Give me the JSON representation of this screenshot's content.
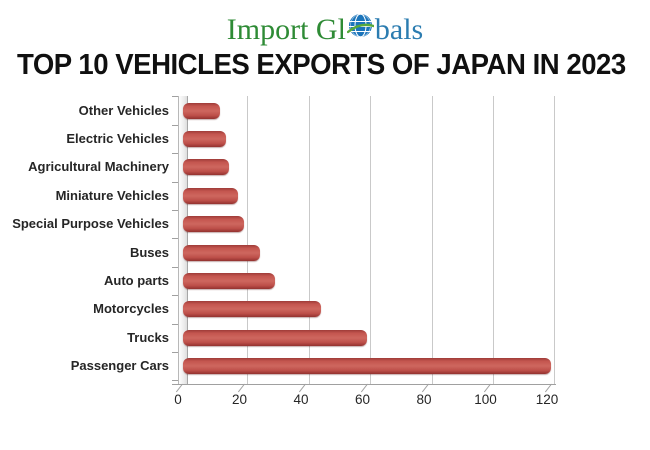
{
  "logo": {
    "part1": "Import Gl",
    "part2": "bals",
    "green": "#2e8b35",
    "blue": "#2b7cb0",
    "globe_blue": "#1b75bb",
    "globe_swoosh_green": "#58a93c"
  },
  "title": "TOP 10 VEHICLES EXPORTS OF JAPAN IN 2023",
  "chart_data": {
    "type": "bar",
    "style": "3d-horizontal-bar",
    "orientation": "horizontal",
    "title": "TOP 10 VEHICLES EXPORTS OF JAPAN IN 2023",
    "categories": [
      "Other Vehicles",
      "Electric Vehicles",
      "Agricultural Machinery",
      "Miniature Vehicles",
      "Special Purpose Vehicles",
      "Buses",
      "Auto parts",
      "Motorcycles",
      "Trucks",
      "Passenger Cars"
    ],
    "values": [
      12,
      14,
      15,
      18,
      20,
      25,
      30,
      45,
      60,
      120
    ],
    "category_order": "top-to-bottom",
    "x_ticks": [
      0,
      20,
      40,
      60,
      80,
      100,
      120
    ],
    "xlim": [
      0,
      123
    ],
    "xlabel": "",
    "ylabel": "",
    "grid": true,
    "legend": false,
    "data_labels": false,
    "bar_color": "#c0504d",
    "bar_gradient": [
      "#9e3b38",
      "#c4564f",
      "#ce675f",
      "#bd4f49",
      "#93322f"
    ],
    "gridline_color": "#c9c9c9"
  }
}
